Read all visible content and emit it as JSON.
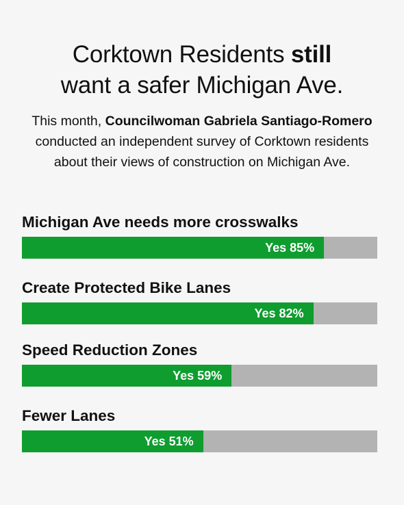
{
  "header": {
    "title_part1": "Corktown Residents ",
    "title_bold": "still",
    "title_part2": "want a safer Michigan Ave."
  },
  "intro": {
    "part1": "This month, ",
    "bold": "Councilwoman Gabriela Santiago-Romero",
    "part2": " conducted an independent survey of Corktown residents about their views of construction on Michigan Ave."
  },
  "colors": {
    "yes_fill": "#0f9d2f",
    "remainder": "#b3b3b3",
    "background": "#f6f6f6"
  },
  "chart_data": {
    "type": "bar",
    "orientation": "horizontal",
    "stacked_to_100": true,
    "categories": [
      "Michigan Ave needs more crosswalks",
      "Create Protected Bike Lanes",
      "Speed Reduction Zones",
      "Fewer Lanes"
    ],
    "series": [
      {
        "name": "Yes",
        "values": [
          85,
          82,
          59,
          51
        ]
      }
    ],
    "data_labels": [
      "Yes 85%",
      "Yes 82%",
      "Yes 59%",
      "Yes 51%"
    ],
    "xlim": [
      0,
      100
    ],
    "grid": false
  }
}
